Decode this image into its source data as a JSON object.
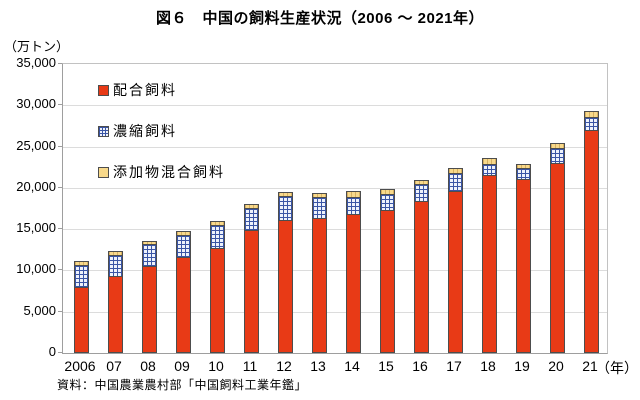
{
  "title": "図６　中国の飼料生産状況（2006 ～ 2021年）",
  "y_unit": "（万トン）",
  "x_unit": "（年）",
  "source": "資料：中国農業農村部「中国飼料工業年鑑」",
  "legend": {
    "items": [
      {
        "label": "配合飼料",
        "key": "compound"
      },
      {
        "label": "濃縮飼料",
        "key": "concentrate"
      },
      {
        "label": "添加物混合飼料",
        "key": "premix"
      }
    ]
  },
  "colors": {
    "compound_fill": "#e83a16",
    "concentrate_line": "#3a55a5",
    "concentrate_bg": "#eef2fb",
    "premix_fill": "#f8d98b",
    "segment_border": "#4d4d4d",
    "gridline": "#dcdcdc",
    "axis": "#9e9e9e"
  },
  "chart_data": {
    "type": "bar",
    "stacked": true,
    "title": "図６　中国の飼料生産状況（2006 ～ 2021年）",
    "ylabel": "（万トン）",
    "xlabel": "（年）",
    "ylim": [
      0,
      35000
    ],
    "ytick_interval": 5000,
    "ytick_labels_top_to_bottom": [
      "35,000",
      "30,000",
      "25,000",
      "20,000",
      "15,000",
      "10,000",
      "5,000",
      "0"
    ],
    "grid": true,
    "legend_position": "upper-left-inside",
    "categories": [
      "2006",
      "07",
      "08",
      "09",
      "10",
      "11",
      "12",
      "13",
      "14",
      "15",
      "16",
      "17",
      "18",
      "19",
      "20",
      "21"
    ],
    "series": [
      {
        "name": "配合飼料",
        "key": "compound",
        "values": [
          8000,
          9300,
          10500,
          11600,
          12700,
          14900,
          16100,
          16300,
          16850,
          17350,
          18400,
          19600,
          21500,
          21100,
          23000,
          27000
        ]
      },
      {
        "name": "濃縮飼料",
        "key": "concentrate",
        "values": [
          2650,
          2600,
          2650,
          2650,
          2800,
          2650,
          2900,
          2550,
          2100,
          1850,
          2100,
          2200,
          1400,
          1350,
          1850,
          1600
        ]
      },
      {
        "name": "添加物混合飼料",
        "key": "premix",
        "values": [
          450,
          450,
          450,
          500,
          550,
          500,
          500,
          500,
          650,
          700,
          500,
          600,
          700,
          450,
          550,
          700
        ]
      }
    ],
    "totals": [
      11100,
      12350,
      13600,
      14750,
      16050,
      18050,
      19500,
      19350,
      19600,
      19900,
      21000,
      22400,
      23600,
      22900,
      25400,
      29300
    ]
  }
}
